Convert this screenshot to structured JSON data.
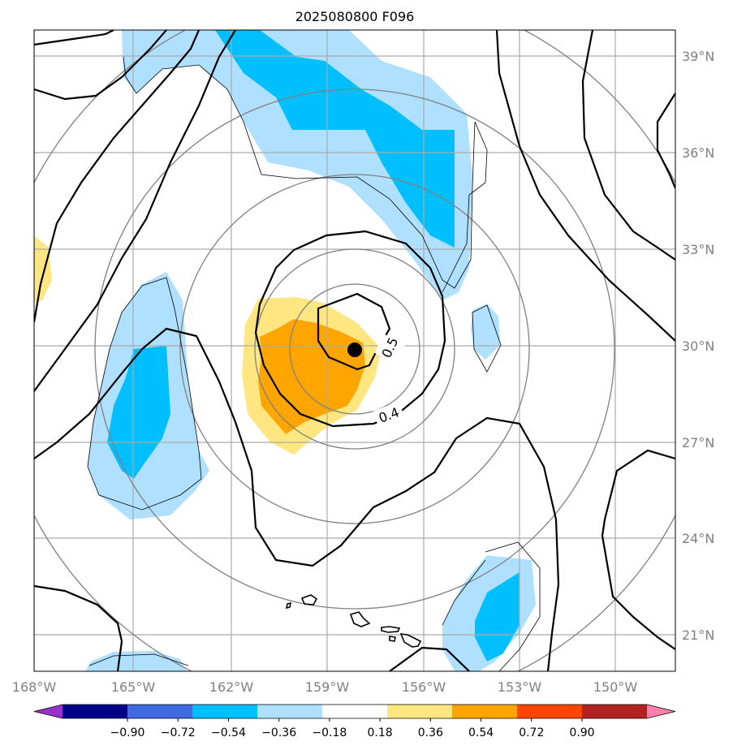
{
  "chart_data": {
    "type": "map",
    "title": "2025080800 F096",
    "x_ticks": [
      "168°W",
      "165°W",
      "162°W",
      "159°W",
      "156°W",
      "153°W",
      "150°W"
    ],
    "y_ticks": [
      "39°N",
      "36°N",
      "33°N",
      "30°N",
      "27°N",
      "24°N",
      "21°N"
    ],
    "lon_values": [
      -168,
      -165,
      -162,
      -159,
      -156,
      -153,
      -150
    ],
    "lat_values": [
      39,
      36,
      33,
      30,
      27,
      24,
      21
    ],
    "extent": {
      "lon": [
        -168,
        -148.5
      ],
      "lat": [
        19.9,
        39.7
      ]
    },
    "grid": true,
    "center_marker": {
      "lon": -158.1,
      "lat": 29.8
    },
    "contour_labels": [
      {
        "text": "0.5",
        "lon": -157.0,
        "lat": 29.8,
        "angle": -65
      },
      {
        "text": "0.4",
        "lon": -157.2,
        "lat": 27.7,
        "angle": -20
      }
    ],
    "colorbar": {
      "levels": [
        "−0.90",
        "−0.72",
        "−0.54",
        "−0.36",
        "−0.18",
        "0.18",
        "0.36",
        "0.54",
        "0.72",
        "0.90"
      ],
      "colors": [
        "#9932cc",
        "#00008b",
        "#4169e1",
        "#00bfff",
        "#b0e0ff",
        "#ffffff",
        "#ffe680",
        "#ffa500",
        "#ff4500",
        "#b22222",
        "#ff80aa"
      ],
      "extend": "both"
    }
  }
}
